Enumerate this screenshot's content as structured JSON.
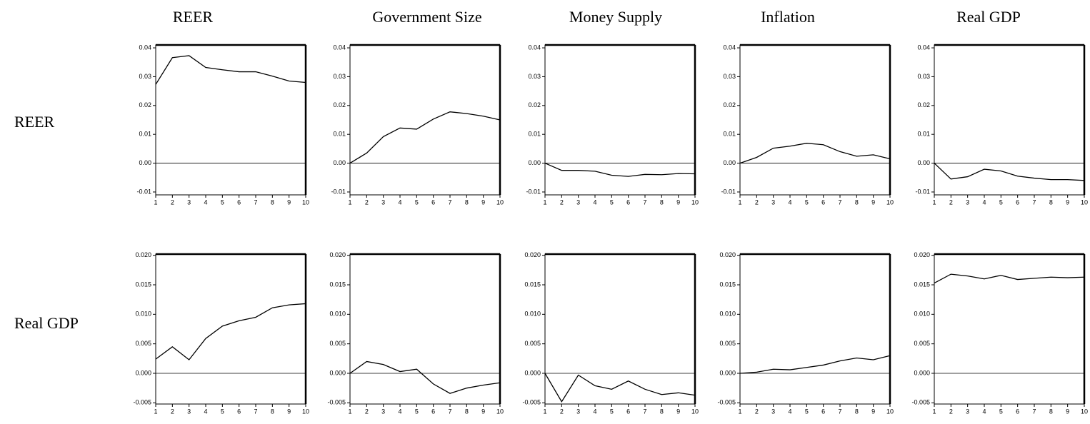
{
  "column_labels": [
    "REER",
    "Government Size",
    "Money Supply",
    "Inflation",
    "Real GDP"
  ],
  "row_labels": [
    "REER",
    "Real GDP"
  ],
  "chart_data": [
    {
      "type": "line",
      "x": [
        1,
        2,
        3,
        4,
        5,
        6,
        7,
        8,
        9,
        10
      ],
      "xlim": [
        1,
        10
      ],
      "xticks": [
        1,
        2,
        3,
        4,
        5,
        6,
        7,
        8,
        9,
        10
      ],
      "ylim": [
        -0.011,
        0.041
      ],
      "yticks": [
        -0.01,
        {
          "value": 0,
          "label": "0.00"
        },
        0.01,
        0.02,
        0.03,
        0.04
      ],
      "zero_line": true,
      "color": "#000000",
      "values": [
        0.0273,
        0.0366,
        0.0373,
        0.0332,
        0.0324,
        0.0317,
        0.0317,
        0.0302,
        0.0285,
        0.028
      ]
    },
    {
      "type": "line",
      "x": [
        1,
        2,
        3,
        4,
        5,
        6,
        7,
        8,
        9,
        10
      ],
      "xlim": [
        1,
        10
      ],
      "xticks": [
        1,
        2,
        3,
        4,
        5,
        6,
        7,
        8,
        9,
        10
      ],
      "ylim": [
        -0.011,
        0.041
      ],
      "yticks": [
        -0.01,
        {
          "value": 0,
          "label": "0.00"
        },
        0.01,
        0.02,
        0.03,
        0.04
      ],
      "zero_line": true,
      "color": "#000000",
      "values": [
        0,
        0.0035,
        0.0092,
        0.0122,
        0.0118,
        0.0153,
        0.0178,
        0.0172,
        0.0163,
        0.015
      ]
    },
    {
      "type": "line",
      "x": [
        1,
        2,
        3,
        4,
        5,
        6,
        7,
        8,
        9,
        10
      ],
      "xlim": [
        1,
        10
      ],
      "xticks": [
        1,
        2,
        3,
        4,
        5,
        6,
        7,
        8,
        9,
        10
      ],
      "ylim": [
        -0.011,
        0.041
      ],
      "yticks": [
        -0.01,
        {
          "value": 0,
          "label": "0.00"
        },
        0.01,
        0.02,
        0.03,
        0.04
      ],
      "zero_line": true,
      "color": "#000000",
      "values": [
        0,
        -0.0025,
        -0.0025,
        -0.0028,
        -0.0042,
        -0.0046,
        -0.0039,
        -0.004,
        -0.0036,
        -0.0037
      ]
    },
    {
      "type": "line",
      "x": [
        1,
        2,
        3,
        4,
        5,
        6,
        7,
        8,
        9,
        10
      ],
      "xlim": [
        1,
        10
      ],
      "xticks": [
        1,
        2,
        3,
        4,
        5,
        6,
        7,
        8,
        9,
        10
      ],
      "ylim": [
        -0.011,
        0.041
      ],
      "yticks": [
        -0.01,
        {
          "value": 0,
          "label": "0.00"
        },
        0.01,
        0.02,
        0.03,
        0.04
      ],
      "zero_line": true,
      "color": "#000000",
      "values": [
        0,
        0.002,
        0.0052,
        0.0059,
        0.0069,
        0.0064,
        0.004,
        0.0024,
        0.0029,
        0.0015
      ]
    },
    {
      "type": "line",
      "x": [
        1,
        2,
        3,
        4,
        5,
        6,
        7,
        8,
        9,
        10
      ],
      "xlim": [
        1,
        10
      ],
      "xticks": [
        1,
        2,
        3,
        4,
        5,
        6,
        7,
        8,
        9,
        10
      ],
      "ylim": [
        -0.011,
        0.041
      ],
      "yticks": [
        -0.01,
        {
          "value": 0,
          "label": "0.00"
        },
        0.01,
        0.02,
        0.03,
        0.04
      ],
      "zero_line": true,
      "color": "#000000",
      "values": [
        0,
        -0.0055,
        -0.0047,
        -0.0021,
        -0.0027,
        -0.0045,
        -0.0052,
        -0.0057,
        -0.0057,
        -0.006
      ]
    },
    {
      "type": "line",
      "x": [
        1,
        2,
        3,
        4,
        5,
        6,
        7,
        8,
        9,
        10
      ],
      "xlim": [
        1,
        10
      ],
      "xticks": [
        1,
        2,
        3,
        4,
        5,
        6,
        7,
        8,
        9,
        10
      ],
      "ylim": [
        -0.0052,
        0.0202
      ],
      "yticks": [
        -0.005,
        {
          "value": 0,
          "label": "0.000"
        },
        0.005,
        {
          "value": 0.01,
          "label": "0.010"
        },
        0.015,
        {
          "value": 0.02,
          "label": "0.020"
        }
      ],
      "zero_line": true,
      "color": "#000000",
      "values": [
        0.0024,
        0.0045,
        0.0023,
        0.0059,
        0.008,
        0.0089,
        0.0095,
        0.0111,
        0.0116,
        0.0118
      ]
    },
    {
      "type": "line",
      "x": [
        1,
        2,
        3,
        4,
        5,
        6,
        7,
        8,
        9,
        10
      ],
      "xlim": [
        1,
        10
      ],
      "xticks": [
        1,
        2,
        3,
        4,
        5,
        6,
        7,
        8,
        9,
        10
      ],
      "ylim": [
        -0.0052,
        0.0202
      ],
      "yticks": [
        -0.005,
        {
          "value": 0,
          "label": "0.000"
        },
        0.005,
        {
          "value": 0.01,
          "label": "0.010"
        },
        0.015,
        {
          "value": 0.02,
          "label": "0.020"
        }
      ],
      "zero_line": true,
      "color": "#000000",
      "values": [
        0,
        0.002,
        0.0015,
        0.0003,
        0.0007,
        -0.0018,
        -0.0034,
        -0.0025,
        -0.002,
        -0.0016
      ]
    },
    {
      "type": "line",
      "x": [
        1,
        2,
        3,
        4,
        5,
        6,
        7,
        8,
        9,
        10
      ],
      "xlim": [
        1,
        10
      ],
      "xticks": [
        1,
        2,
        3,
        4,
        5,
        6,
        7,
        8,
        9,
        10
      ],
      "ylim": [
        -0.0052,
        0.0202
      ],
      "yticks": [
        -0.005,
        {
          "value": 0,
          "label": "0.000"
        },
        0.005,
        {
          "value": 0.01,
          "label": "0.010"
        },
        0.015,
        {
          "value": 0.02,
          "label": "0.020"
        }
      ],
      "zero_line": true,
      "color": "#000000",
      "values": [
        0,
        -0.0048,
        -0.0003,
        -0.0021,
        -0.0027,
        -0.0013,
        -0.0027,
        -0.0036,
        -0.0033,
        -0.0037
      ]
    },
    {
      "type": "line",
      "x": [
        1,
        2,
        3,
        4,
        5,
        6,
        7,
        8,
        9,
        10
      ],
      "xlim": [
        1,
        10
      ],
      "xticks": [
        1,
        2,
        3,
        4,
        5,
        6,
        7,
        8,
        9,
        10
      ],
      "ylim": [
        -0.0052,
        0.0202
      ],
      "yticks": [
        -0.005,
        {
          "value": 0,
          "label": "0.000"
        },
        0.005,
        {
          "value": 0.01,
          "label": "0.010"
        },
        0.015,
        {
          "value": 0.02,
          "label": "0.020"
        }
      ],
      "zero_line": true,
      "color": "#000000",
      "values": [
        0,
        0.0002,
        0.0007,
        0.0006,
        0.001,
        0.0014,
        0.0021,
        0.0026,
        0.0023,
        0.003
      ]
    },
    {
      "type": "line",
      "x": [
        1,
        2,
        3,
        4,
        5,
        6,
        7,
        8,
        9,
        10
      ],
      "xlim": [
        1,
        10
      ],
      "xticks": [
        1,
        2,
        3,
        4,
        5,
        6,
        7,
        8,
        9,
        10
      ],
      "ylim": [
        -0.0052,
        0.0202
      ],
      "yticks": [
        -0.005,
        {
          "value": 0,
          "label": "0.000"
        },
        0.005,
        {
          "value": 0.01,
          "label": "0.010"
        },
        0.015,
        {
          "value": 0.02,
          "label": "0.020"
        }
      ],
      "zero_line": true,
      "color": "#000000",
      "values": [
        0.0153,
        0.0168,
        0.0165,
        0.016,
        0.0166,
        0.0159,
        0.0161,
        0.0163,
        0.0162,
        0.0163
      ]
    }
  ]
}
